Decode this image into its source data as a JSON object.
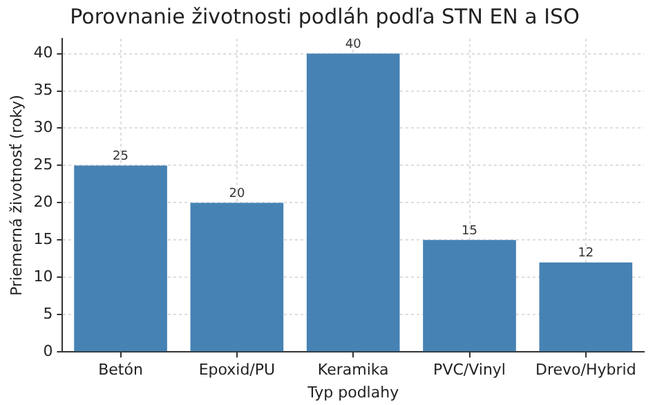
{
  "chart_data": {
    "type": "bar",
    "title": "Porovnanie životnosti podláh podľa STN EN a ISO",
    "xlabel": "Typ podlahy",
    "ylabel": "Priemerná životnosť (roky)",
    "categories": [
      "Betón",
      "Epoxid/PU",
      "Keramika",
      "PVC/Vinyl",
      "Drevo/Hybrid"
    ],
    "values": [
      25,
      20,
      40,
      15,
      12
    ],
    "color": "#4682b4",
    "ylim": [
      0,
      42
    ],
    "yticks": [
      0,
      5,
      10,
      15,
      20,
      25,
      30,
      35,
      40
    ],
    "grid": true,
    "data_labels": true
  }
}
